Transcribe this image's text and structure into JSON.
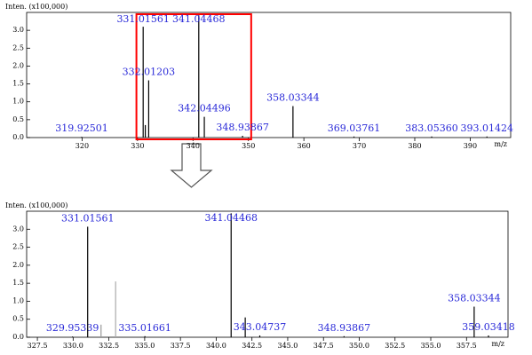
{
  "chart_data": [
    {
      "type": "spectrum",
      "ylabel": "Inten. (x100,000)",
      "xlabel": "m/z",
      "x": [
        319.92501,
        331.01561,
        331.4,
        332.01203,
        341.04468,
        342.04496,
        348.93867,
        358.03344,
        369.03761,
        383.0536,
        393.01424
      ],
      "x_labels": [
        "319.92501",
        "331.01561",
        null,
        "332.01203",
        "341.04468",
        "342.04496",
        "348.93867",
        "358.03344",
        "369.03761",
        "383.05360",
        "393.01424"
      ],
      "values": [
        0.02,
        3.1,
        0.35,
        1.6,
        3.42,
        0.58,
        0.05,
        0.88,
        0.03,
        0.03,
        0.03
      ],
      "color": "#000000",
      "label_color": "#2a2ad8",
      "xlim": [
        310,
        397.3
      ],
      "ylim": [
        0,
        3.5
      ],
      "xticks": [
        320,
        330,
        340,
        350,
        360,
        370,
        380,
        390
      ],
      "yticks": [
        {
          "value": 0,
          "label": "0.0"
        },
        0.5,
        {
          "value": 1,
          "label": "1.0"
        },
        1.5,
        {
          "value": 2,
          "label": "2.0"
        },
        2.5,
        {
          "value": 3,
          "label": "3.0"
        }
      ],
      "highlight": {
        "xlim": [
          329.8,
          350.5
        ],
        "color": "#ff0000"
      }
    },
    {
      "type": "spectrum",
      "ylabel": "Inten. (x100,000)",
      "xlabel": "m/z",
      "x": [
        329.95339,
        331.01561,
        331.95,
        332.97,
        335.01661,
        341.04468,
        342.03,
        343.04737,
        348.93867,
        358.03344,
        359.03418
      ],
      "x_labels": [
        "329.95339",
        "331.01561",
        null,
        null,
        "335.01661",
        "341.04468",
        null,
        "343.04737",
        "348.93867",
        "358.03344",
        "359.03418"
      ],
      "values": [
        0.02,
        3.07,
        0.35,
        1.55,
        0.03,
        3.44,
        0.55,
        0.05,
        0.03,
        0.85,
        0.05
      ],
      "colors": [
        "#000000",
        "#000000",
        "#999999",
        "#aaaaaa",
        "#000000",
        "#000000",
        "#000000",
        "#000000",
        "#000000",
        "#000000",
        "#000000"
      ],
      "label_color": "#2a2ad8",
      "xlim": [
        326.75,
        360.4
      ],
      "ylim": [
        0,
        3.5
      ],
      "xticks": [
        327.5,
        {
          "value": 330,
          "label": "330.0"
        },
        332.5,
        {
          "value": 335,
          "label": "335.0"
        },
        337.5,
        {
          "value": 340,
          "label": "340.0"
        },
        342.5,
        {
          "value": 345,
          "label": "345.0"
        },
        347.5,
        {
          "value": 350,
          "label": "350.0"
        },
        352.5,
        {
          "value": 355,
          "label": "355.0"
        },
        357.5
      ],
      "yticks": [
        {
          "value": 0,
          "label": "0.0"
        },
        0.5,
        {
          "value": 1,
          "label": "1.0"
        },
        1.5,
        {
          "value": 2,
          "label": "2.0"
        },
        2.5,
        {
          "value": 3,
          "label": "3.0"
        }
      ]
    }
  ]
}
